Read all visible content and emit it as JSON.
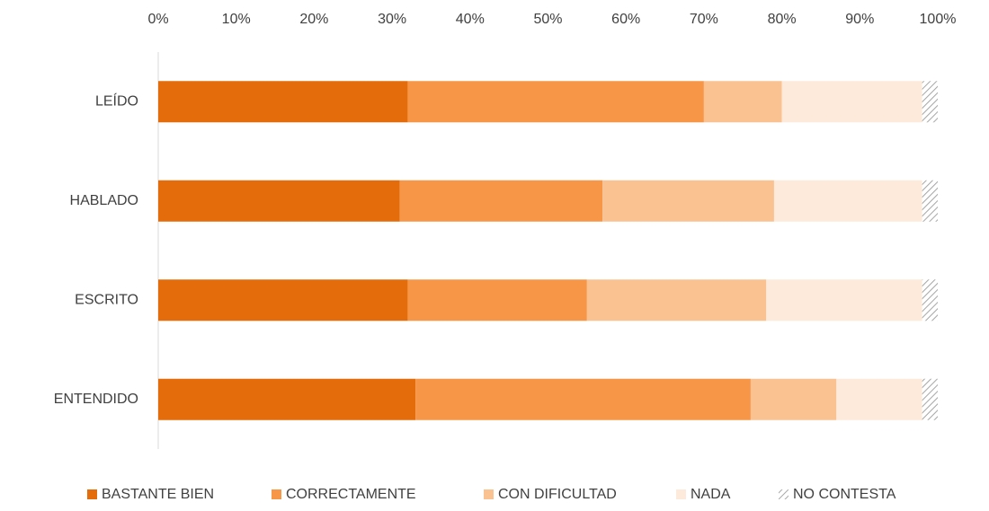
{
  "chart_data": {
    "type": "stacked_barh",
    "categories": [
      "LEÍDO",
      "HABLADO",
      "ESCRITO",
      "ENTENDIDO"
    ],
    "series": [
      {
        "name": "BASTANTE BIEN",
        "color": "#e46c0a",
        "values": [
          32,
          31,
          32,
          33
        ]
      },
      {
        "name": "CORRECTAMENTE",
        "color": "#f79646",
        "values": [
          38,
          26,
          23,
          43
        ]
      },
      {
        "name": "CON DIFICULTAD",
        "color": "#fac191",
        "values": [
          10,
          22,
          23,
          11
        ]
      },
      {
        "name": "NADA",
        "color": "#fdeada",
        "values": [
          18,
          19,
          20,
          11
        ]
      },
      {
        "name": "NO CONTESTA",
        "color": "#a6a6a6",
        "hatch": true,
        "values": [
          2,
          2,
          2,
          2
        ]
      }
    ],
    "xlim": [
      0,
      100
    ],
    "xticks": [
      {
        "value": 0,
        "label": "0%"
      },
      {
        "value": 10,
        "label": "10%"
      },
      {
        "value": 20,
        "label": "20%"
      },
      {
        "value": 30,
        "label": "30%"
      },
      {
        "value": 40,
        "label": "40%"
      },
      {
        "value": 50,
        "label": "50%"
      },
      {
        "value": 60,
        "label": "60%"
      },
      {
        "value": 70,
        "label": "70%"
      },
      {
        "value": 80,
        "label": "80%"
      },
      {
        "value": 90,
        "label": "90%"
      },
      {
        "value": 100,
        "label": "100%"
      }
    ],
    "xaxis_position": "top",
    "legend": "bottom"
  }
}
